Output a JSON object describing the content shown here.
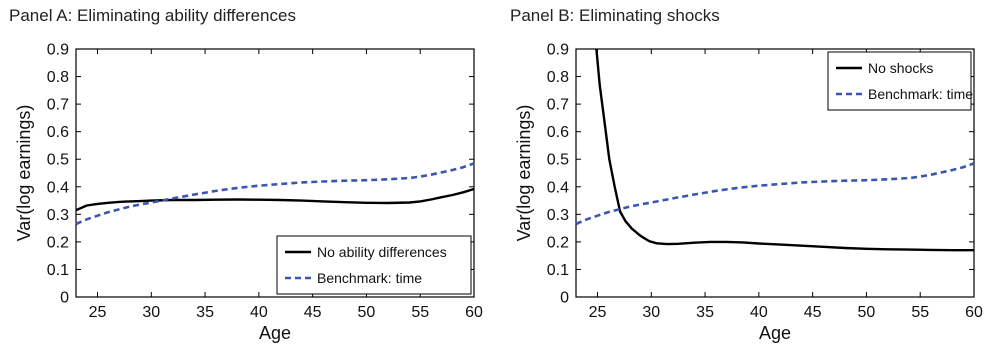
{
  "chart_data": [
    {
      "type": "line",
      "title": "Panel A: Eliminating ability differences",
      "xlabel": "Age",
      "ylabel": "Var(log earnings)",
      "xlim": [
        23,
        60
      ],
      "ylim": [
        0,
        0.9
      ],
      "xticks": [
        25,
        30,
        35,
        40,
        45,
        50,
        55,
        60
      ],
      "yticks": [
        0,
        0.1,
        0.2,
        0.3,
        0.4,
        0.5,
        0.6,
        0.7,
        0.8,
        0.9
      ],
      "legend_position": "bottom-right",
      "grid": false,
      "series": [
        {
          "name": "No ability differences",
          "style": "solid",
          "color": "#000000",
          "x": [
            23,
            24,
            25,
            26,
            27,
            28,
            29,
            30,
            32,
            34,
            36,
            38,
            40,
            42,
            44,
            46,
            48,
            50,
            52,
            54,
            55,
            56,
            57,
            58,
            59,
            60
          ],
          "y": [
            0.315,
            0.332,
            0.338,
            0.342,
            0.345,
            0.347,
            0.348,
            0.35,
            0.352,
            0.352,
            0.353,
            0.354,
            0.353,
            0.352,
            0.35,
            0.347,
            0.344,
            0.342,
            0.341,
            0.343,
            0.347,
            0.354,
            0.362,
            0.37,
            0.38,
            0.392
          ]
        },
        {
          "name": "Benchmark: time",
          "style": "dashed",
          "color": "#3b56b0",
          "x": [
            23,
            24,
            25,
            26,
            27,
            28,
            29,
            30,
            32,
            34,
            36,
            38,
            40,
            42,
            44,
            46,
            48,
            50,
            52,
            54,
            55,
            56,
            57,
            58,
            59,
            60
          ],
          "y": [
            0.265,
            0.282,
            0.295,
            0.308,
            0.318,
            0.328,
            0.336,
            0.343,
            0.358,
            0.372,
            0.385,
            0.396,
            0.404,
            0.41,
            0.416,
            0.419,
            0.422,
            0.424,
            0.427,
            0.432,
            0.437,
            0.444,
            0.452,
            0.461,
            0.471,
            0.485
          ]
        }
      ]
    },
    {
      "type": "line",
      "title": "Panel B: Eliminating shocks",
      "xlabel": "Age",
      "ylabel": "Var(log earnings)",
      "xlim": [
        23,
        60
      ],
      "ylim": [
        0,
        0.9
      ],
      "xticks": [
        25,
        30,
        35,
        40,
        45,
        50,
        55,
        60
      ],
      "yticks": [
        0,
        0.1,
        0.2,
        0.3,
        0.4,
        0.5,
        0.6,
        0.7,
        0.8,
        0.9
      ],
      "legend_position": "top-right",
      "grid": false,
      "series": [
        {
          "name": "No shocks",
          "style": "solid",
          "color": "#000000",
          "x": [
            24.9,
            25.2,
            25.6,
            26.1,
            26.6,
            27.1,
            27.6,
            28.2,
            29,
            29.8,
            30.5,
            31.5,
            32.5,
            34,
            35.5,
            37,
            38.5,
            40,
            42,
            44,
            46,
            48,
            50,
            52,
            54,
            56,
            58,
            60
          ],
          "y": [
            0.9,
            0.77,
            0.65,
            0.5,
            0.4,
            0.31,
            0.275,
            0.248,
            0.222,
            0.203,
            0.195,
            0.192,
            0.193,
            0.197,
            0.2,
            0.2,
            0.198,
            0.194,
            0.19,
            0.186,
            0.182,
            0.178,
            0.175,
            0.173,
            0.172,
            0.171,
            0.17,
            0.17
          ]
        },
        {
          "name": "Benchmark: time",
          "style": "dashed",
          "color": "#3b56b0",
          "x": [
            23,
            24,
            25,
            26,
            27,
            28,
            29,
            30,
            32,
            34,
            36,
            38,
            40,
            42,
            44,
            46,
            48,
            50,
            52,
            54,
            55,
            56,
            57,
            58,
            59,
            60
          ],
          "y": [
            0.265,
            0.282,
            0.295,
            0.308,
            0.318,
            0.328,
            0.336,
            0.343,
            0.358,
            0.372,
            0.385,
            0.396,
            0.404,
            0.41,
            0.416,
            0.419,
            0.422,
            0.424,
            0.427,
            0.432,
            0.437,
            0.444,
            0.452,
            0.461,
            0.471,
            0.485
          ]
        }
      ]
    }
  ]
}
